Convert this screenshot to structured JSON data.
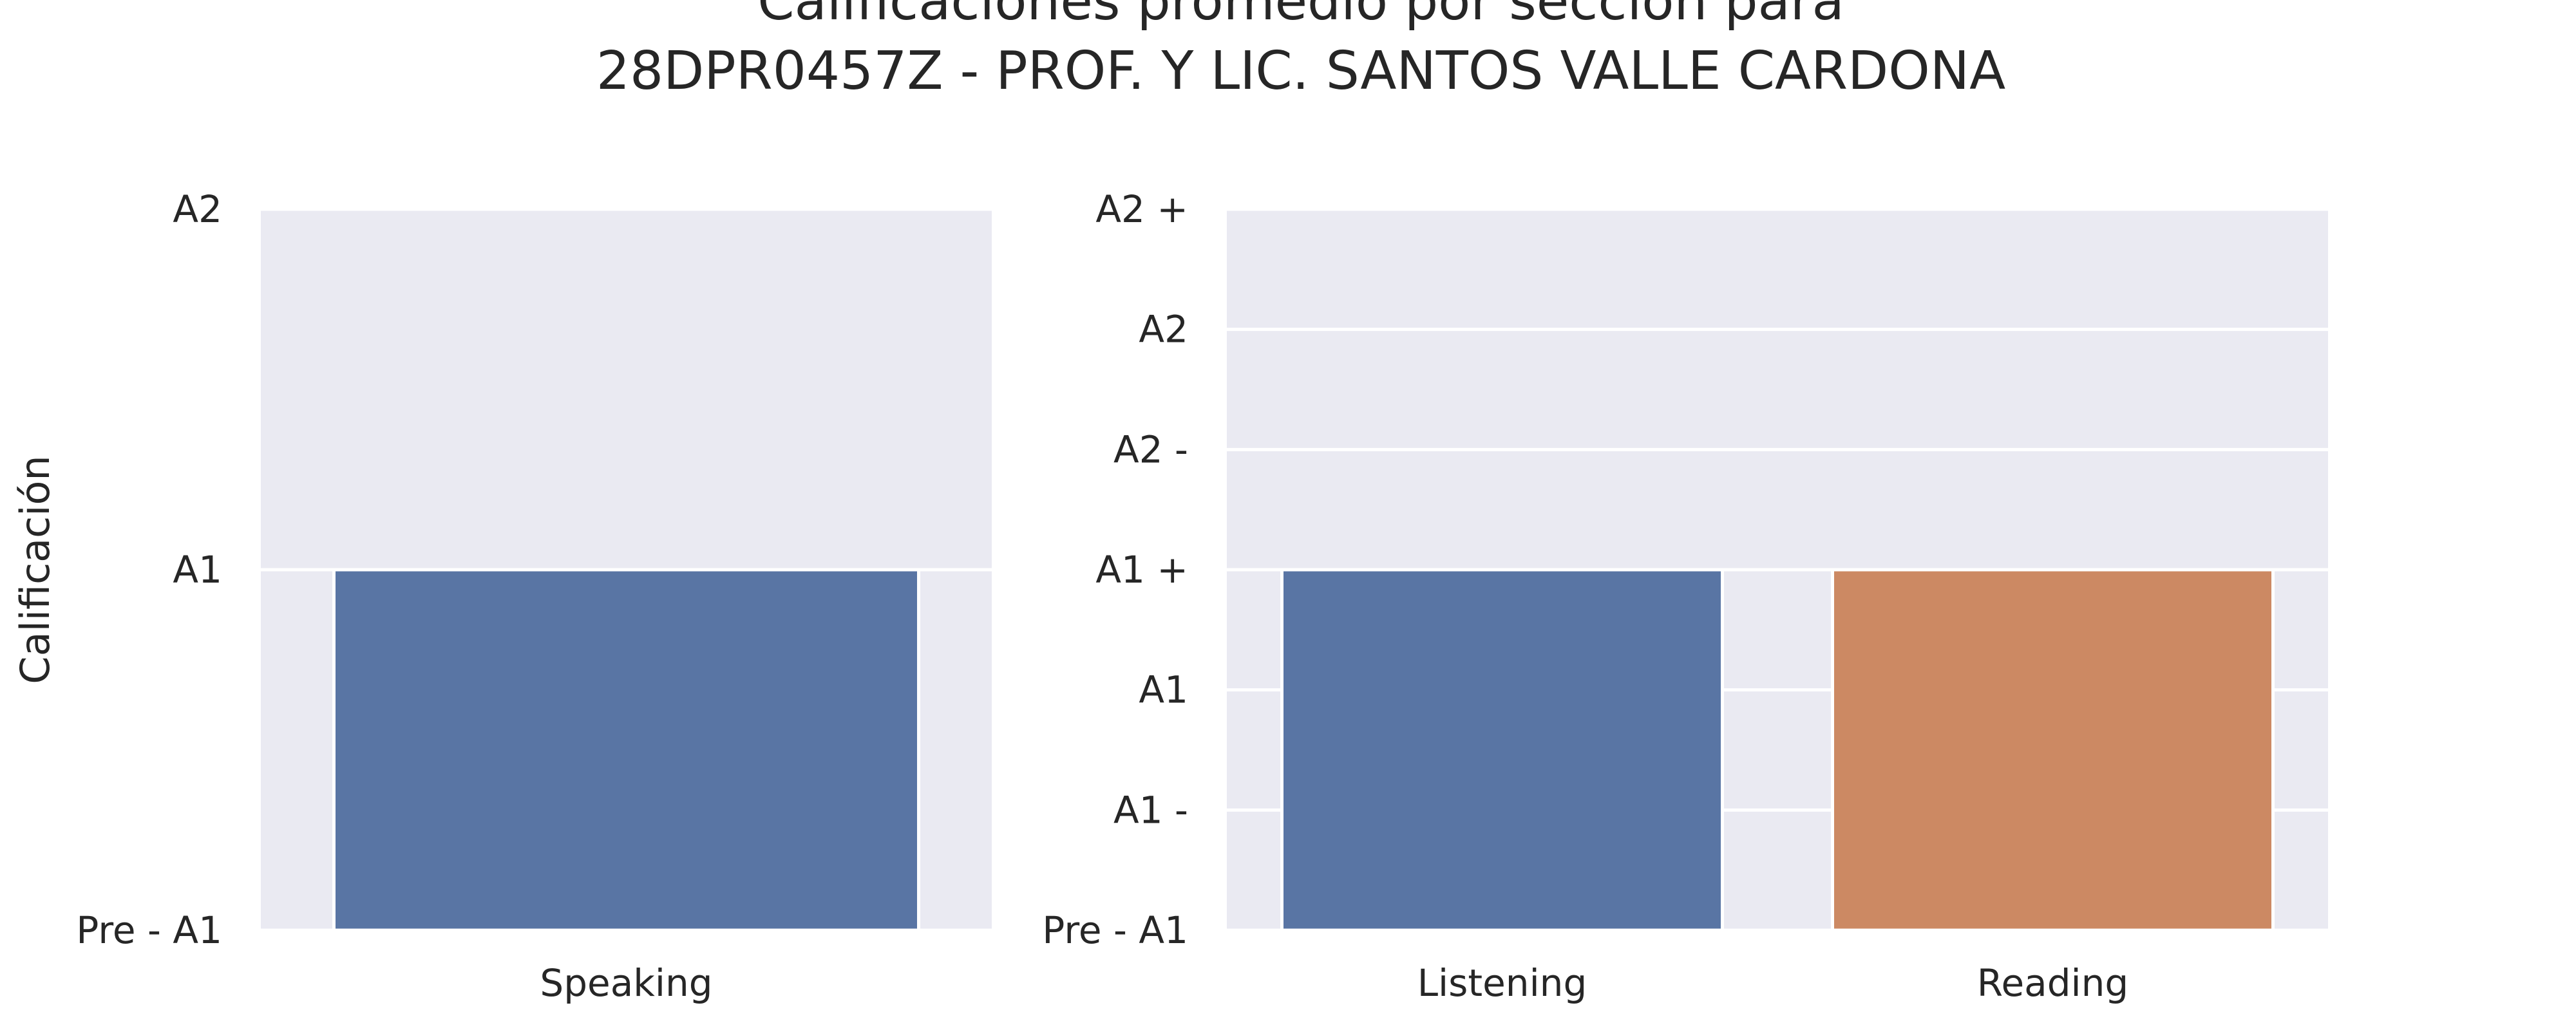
{
  "chart_data": {
    "title": [
      "Calificaciones promedio por sección para",
      "28DPR0457Z - PROF. Y LIC. SANTOS VALLE CARDONA"
    ],
    "ylabel": "Calificación",
    "subplots": [
      {
        "type": "bar",
        "categories": [
          "Speaking"
        ],
        "values": [
          1
        ],
        "ylim": [
          0,
          2
        ],
        "yticks": [
          0,
          1,
          2
        ],
        "ytick_labels": [
          "Pre - A1",
          "A1",
          "A2"
        ],
        "colors": [
          "#5975a4"
        ],
        "grid": true
      },
      {
        "type": "bar",
        "categories": [
          "Listening",
          "Reading"
        ],
        "values": [
          3,
          3
        ],
        "ylim": [
          0,
          6
        ],
        "yticks": [
          0,
          1,
          2,
          3,
          4,
          5,
          6
        ],
        "ytick_labels": [
          "Pre - A1",
          "A1 -",
          "A1",
          "A1 +",
          "A2 -",
          "A2",
          "A2 +"
        ],
        "colors": [
          "#5975a4",
          "#cc8963"
        ],
        "grid": true
      }
    ]
  }
}
